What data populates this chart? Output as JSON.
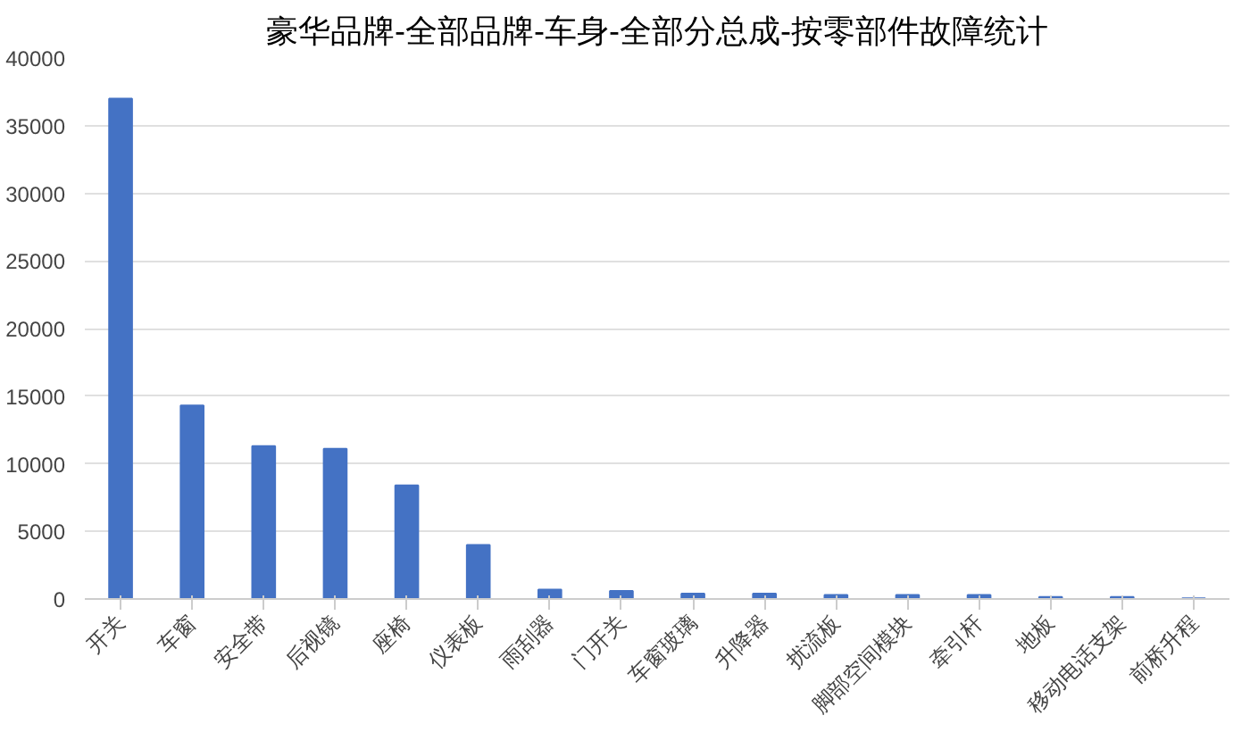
{
  "chart_data": {
    "type": "bar",
    "title": "豪华品牌-全部品牌-车身-全部分总成-按零部件故障统计",
    "categories": [
      "开关",
      "车窗",
      "安全带",
      "后视镜",
      "座椅",
      "仪表板",
      "雨刮器",
      "门开关",
      "车窗玻璃",
      "升降器",
      "扰流板",
      "脚部空间模块",
      "牵引杆",
      "地板",
      "移动电话支架",
      "前桥升程"
    ],
    "values": [
      37000,
      14300,
      11300,
      11100,
      8400,
      4000,
      700,
      600,
      400,
      400,
      300,
      300,
      300,
      150,
      150,
      50
    ],
    "color": "#4472c4",
    "ylim": [
      0,
      40000
    ],
    "yticks": [
      0,
      5000,
      10000,
      15000,
      20000,
      25000,
      30000,
      35000,
      40000
    ],
    "grid": "y"
  }
}
